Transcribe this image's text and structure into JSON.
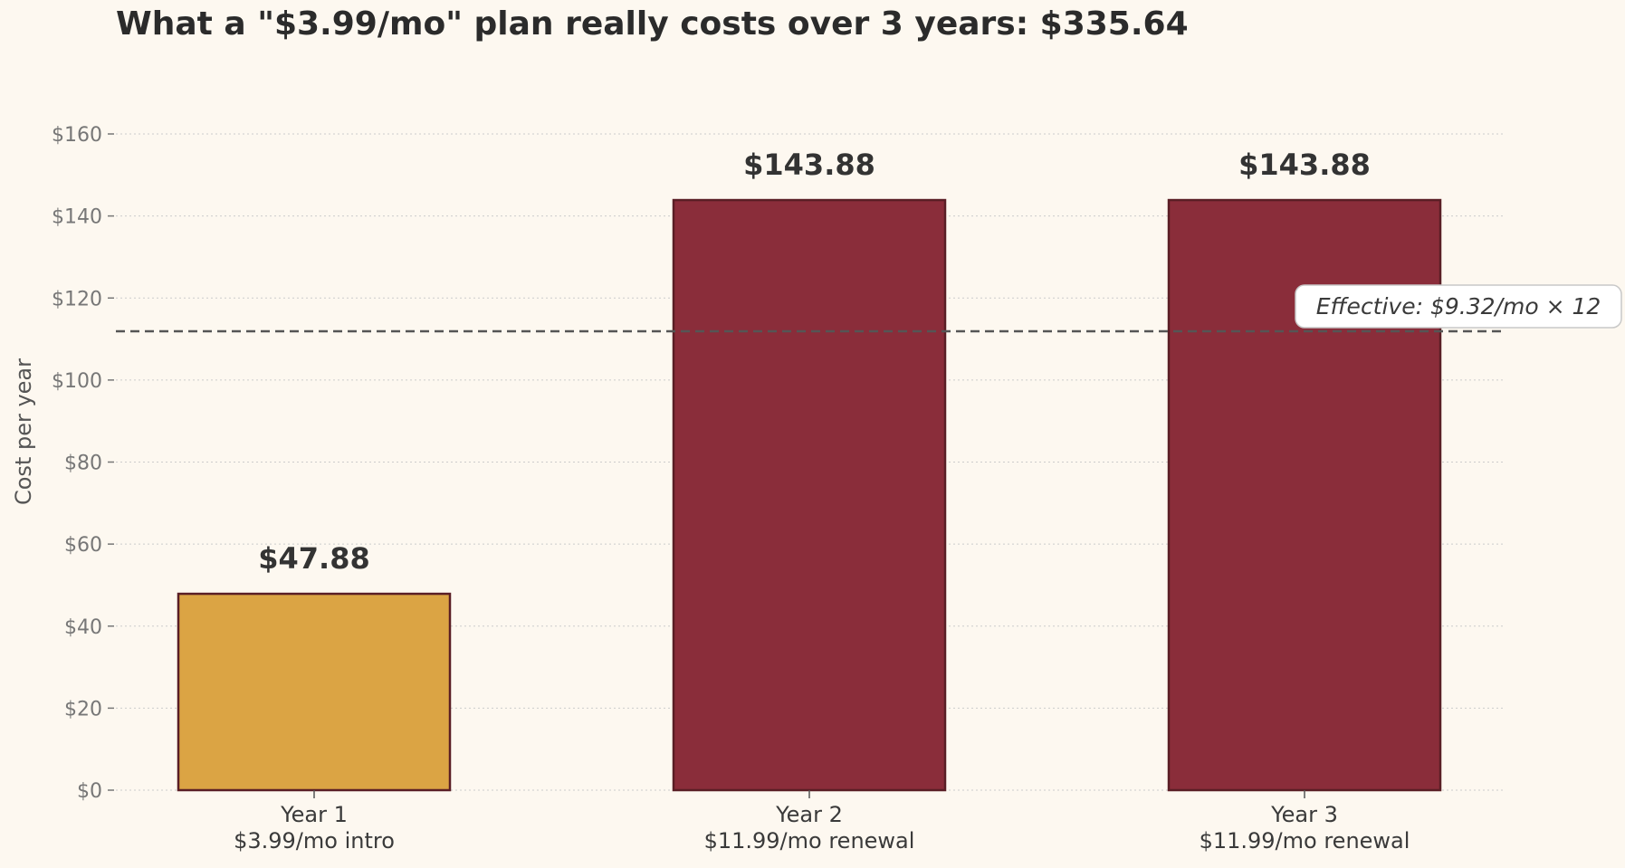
{
  "chart_data": {
    "type": "bar",
    "title": "What a \"$3.99/mo\" plan really costs over 3 years: $335.64",
    "ylabel": "Cost per year",
    "xlabel": "",
    "ylim": [
      0,
      160
    ],
    "yticks": [
      0,
      20,
      40,
      60,
      80,
      100,
      120,
      140,
      160
    ],
    "ytick_labels": [
      "$0",
      "$20",
      "$40",
      "$60",
      "$80",
      "$100",
      "$120",
      "$140",
      "$160"
    ],
    "grid": "horizontal dotted",
    "categories": [
      {
        "line1": "Year 1",
        "line2": "$3.99/mo intro"
      },
      {
        "line1": "Year 2",
        "line2": "$11.99/mo renewal"
      },
      {
        "line1": "Year 3",
        "line2": "$11.99/mo renewal"
      }
    ],
    "values": [
      47.88,
      143.88,
      143.88
    ],
    "value_labels": [
      "$47.88",
      "$143.88",
      "$143.88"
    ],
    "bar_colors": [
      "#dba444",
      "#8a2d3a",
      "#8a2d3a"
    ],
    "bar_edge_color": "#5a1e25",
    "reference_line": {
      "value": 111.88,
      "style": "dashed",
      "color": "#555555",
      "label": "Effective: $9.32/mo × 12"
    }
  }
}
